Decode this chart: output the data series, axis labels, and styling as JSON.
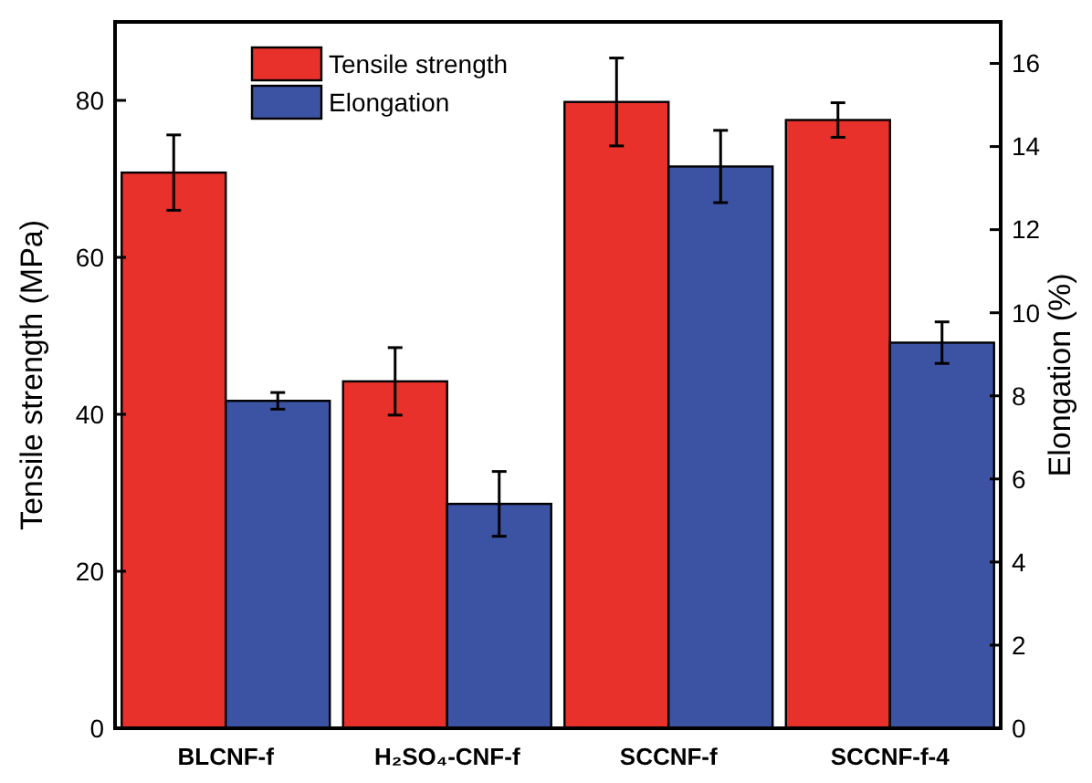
{
  "chart_data": {
    "type": "bar",
    "categories": [
      "BLCNF-f",
      "H₂SO₄-CNF-f",
      "SCCNF-f",
      "SCCNF-f-4"
    ],
    "series": [
      {
        "name": "Tensile strength",
        "color": "#e8312a",
        "values": [
          70.8,
          44.2,
          79.8,
          77.5
        ],
        "errors": [
          4.8,
          4.3,
          5.6,
          2.2
        ]
      },
      {
        "name": "Elongation",
        "color": "#3c53a4",
        "values": [
          7.88,
          5.4,
          13.52,
          9.28
        ],
        "errors": [
          0.2,
          0.78,
          0.87,
          0.5
        ],
        "axis": "y2"
      }
    ],
    "ylabel": "Tensile strength (MPa)",
    "y2label": "Elongation (%)",
    "ylim": [
      0,
      90
    ],
    "yticks": [
      0,
      20,
      40,
      60,
      80
    ],
    "y2lim": [
      0,
      17
    ],
    "y2ticks": [
      0,
      2,
      4,
      6,
      8,
      10,
      12,
      14,
      16
    ],
    "legend": "top left",
    "grid": false
  }
}
